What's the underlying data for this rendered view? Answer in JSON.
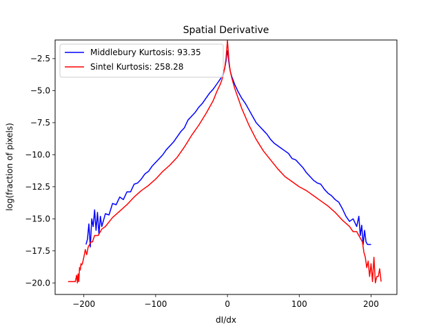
{
  "chart_data": {
    "type": "line",
    "title": "Spatial Derivative",
    "xlabel": "dI/dx",
    "ylabel": "log(fraction of pixels)",
    "xlim": [
      -240,
      236
    ],
    "ylim": [
      -20.9,
      -1.05
    ],
    "xticks": [
      -200,
      -100,
      0,
      100,
      200
    ],
    "xtick_labels": [
      "−200",
      "−100",
      "0",
      "100",
      "200"
    ],
    "yticks": [
      -2.5,
      -5.0,
      -7.5,
      -10.0,
      -12.5,
      -15.0,
      -17.5,
      -20.0
    ],
    "ytick_labels": [
      "−2.5",
      "−5.0",
      "−7.5",
      "−10.0",
      "−12.5",
      "−15.0",
      "−17.5",
      "−20.0"
    ],
    "legend_position": "top-left",
    "series": [
      {
        "name": "Middlebury Kurtosis: 93.35",
        "color": "#0000ff",
        "x": [
          -197,
          -195,
          -193,
          -191,
          -189,
          -187,
          -185,
          -183,
          -181,
          -179,
          -177,
          -175,
          -170,
          -165,
          -160,
          -155,
          -150,
          -145,
          -140,
          -135,
          -130,
          -125,
          -120,
          -115,
          -110,
          -105,
          -100,
          -95,
          -90,
          -85,
          -80,
          -75,
          -70,
          -65,
          -60,
          -55,
          -50,
          -45,
          -40,
          -35,
          -30,
          -25,
          -20,
          -15,
          -10,
          -8,
          -6,
          -4,
          -3,
          -2,
          -1,
          0,
          1,
          2,
          3,
          4,
          6,
          8,
          10,
          15,
          20,
          25,
          30,
          35,
          40,
          45,
          50,
          55,
          60,
          65,
          70,
          75,
          80,
          85,
          90,
          95,
          100,
          105,
          110,
          115,
          120,
          125,
          130,
          135,
          140,
          145,
          150,
          155,
          160,
          165,
          170,
          175,
          180,
          183,
          185,
          187,
          189,
          191,
          193,
          195,
          197,
          200
        ],
        "values": [
          -17.0,
          -16.6,
          -15.4,
          -17.2,
          -15.0,
          -15.6,
          -14.3,
          -15.9,
          -14.5,
          -16.2,
          -14.8,
          -15.6,
          -14.6,
          -14.7,
          -13.8,
          -13.9,
          -13.3,
          -13.5,
          -12.9,
          -12.9,
          -12.3,
          -12.2,
          -11.9,
          -11.5,
          -11.3,
          -10.9,
          -10.6,
          -10.3,
          -10.0,
          -9.6,
          -9.3,
          -9.0,
          -8.6,
          -8.2,
          -7.9,
          -7.3,
          -7.0,
          -6.7,
          -6.3,
          -6.0,
          -5.6,
          -5.2,
          -4.9,
          -4.5,
          -4.1,
          -3.9,
          -3.6,
          -3.3,
          -3.0,
          -2.7,
          -2.2,
          -1.9,
          -2.3,
          -2.8,
          -3.2,
          -3.5,
          -3.9,
          -4.2,
          -4.5,
          -5.1,
          -5.6,
          -6.0,
          -6.5,
          -7.0,
          -7.5,
          -7.8,
          -8.1,
          -8.4,
          -8.8,
          -9.1,
          -9.3,
          -9.5,
          -9.7,
          -9.9,
          -10.3,
          -10.4,
          -10.7,
          -11.0,
          -11.4,
          -11.7,
          -12.0,
          -12.2,
          -12.3,
          -12.7,
          -13.0,
          -13.2,
          -13.5,
          -13.7,
          -14.2,
          -14.8,
          -15.2,
          -15.0,
          -15.6,
          -14.8,
          -16.3,
          -15.5,
          -17.0,
          -15.9,
          -16.8,
          -17.0,
          -17.0,
          -17.0
        ]
      },
      {
        "name": "Sintel Kurtosis: 258.28",
        "color": "#ff0000",
        "x": [
          -222,
          -218,
          -214,
          -212,
          -210,
          -209,
          -208,
          -207,
          -206,
          -205,
          -204,
          -203,
          -202,
          -200,
          -198,
          -196,
          -194,
          -192,
          -190,
          -188,
          -185,
          -180,
          -175,
          -170,
          -160,
          -150,
          -140,
          -130,
          -120,
          -110,
          -100,
          -90,
          -80,
          -70,
          -60,
          -50,
          -40,
          -30,
          -20,
          -15,
          -10,
          -8,
          -6,
          -4,
          -3,
          -2,
          -1,
          0,
          1,
          2,
          3,
          4,
          6,
          8,
          10,
          15,
          20,
          30,
          40,
          50,
          60,
          70,
          80,
          90,
          100,
          110,
          120,
          130,
          140,
          150,
          160,
          170,
          175,
          180,
          185,
          188,
          190,
          192,
          194,
          196,
          198,
          200,
          202,
          204,
          206,
          208,
          210,
          212,
          214
        ],
        "values": [
          -19.9,
          -19.9,
          -19.9,
          -19.9,
          -19.4,
          -20.0,
          -19.3,
          -19.9,
          -18.8,
          -19.0,
          -18.5,
          -18.6,
          -18.5,
          -18.0,
          -17.4,
          -17.8,
          -17.2,
          -17.0,
          -16.8,
          -16.8,
          -16.3,
          -16.3,
          -15.8,
          -15.6,
          -14.9,
          -14.4,
          -13.9,
          -13.3,
          -12.8,
          -12.4,
          -11.9,
          -11.3,
          -10.8,
          -10.2,
          -9.4,
          -8.5,
          -7.7,
          -6.8,
          -5.8,
          -5.1,
          -4.5,
          -4.2,
          -3.8,
          -3.3,
          -2.9,
          -2.5,
          -1.8,
          -1.1,
          -1.8,
          -2.6,
          -3.1,
          -3.5,
          -4.0,
          -4.4,
          -4.8,
          -5.6,
          -6.4,
          -7.7,
          -8.8,
          -9.7,
          -10.4,
          -11.1,
          -11.7,
          -12.1,
          -12.5,
          -12.8,
          -13.2,
          -13.6,
          -14.0,
          -14.5,
          -15.1,
          -15.6,
          -16.0,
          -16.0,
          -16.5,
          -16.8,
          -17.6,
          -18.0,
          -18.8,
          -18.3,
          -19.5,
          -18.5,
          -19.9,
          -18.0,
          -20.0,
          -19.5,
          -19.5,
          -18.9,
          -19.9
        ]
      }
    ]
  }
}
